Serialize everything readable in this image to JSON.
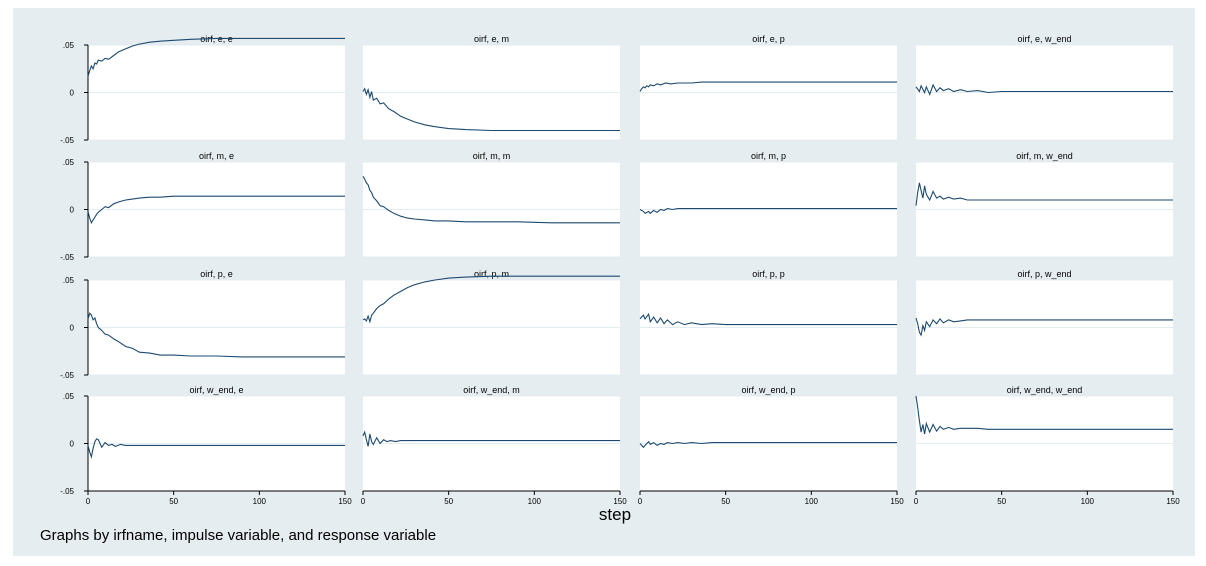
{
  "chart_data": {
    "type": "line",
    "layout": "small-multiples 4x4, shared axes",
    "xlabel": "step",
    "note": "Graphs by irfname, impulse variable, and response variable",
    "xlim": [
      0,
      150
    ],
    "ylim": [
      -0.05,
      0.05
    ],
    "x_ticks": [
      0,
      50,
      100,
      150
    ],
    "y_ticks": [
      0.05,
      0,
      -0.05
    ],
    "x_tick_labels": [
      "0",
      "50",
      "100",
      "150"
    ],
    "y_tick_labels": [
      ".05",
      "0",
      "-.05"
    ],
    "grid": true,
    "colors": {
      "background": "#e6edf1",
      "panel": "#ffffff",
      "strip": "#e6edf1",
      "line": "#1c4a70",
      "grid": "#e3ecf1"
    },
    "panels": [
      {
        "title": "oirf, e, e",
        "x": [
          0,
          1,
          2,
          3,
          4,
          5,
          6,
          8,
          10,
          12,
          15,
          18,
          22,
          26,
          30,
          36,
          42,
          50,
          60,
          75,
          90,
          110,
          130,
          150
        ],
        "y": [
          0.017,
          0.023,
          0.028,
          0.025,
          0.031,
          0.03,
          0.034,
          0.033,
          0.036,
          0.035,
          0.039,
          0.043,
          0.046,
          0.049,
          0.051,
          0.053,
          0.054,
          0.055,
          0.056,
          0.057,
          0.057,
          0.057,
          0.057,
          0.057
        ]
      },
      {
        "title": "oirf, e, m",
        "x": [
          0,
          1,
          2,
          3,
          4,
          5,
          6,
          8,
          10,
          12,
          15,
          18,
          22,
          26,
          30,
          36,
          42,
          50,
          60,
          75,
          90,
          110,
          130,
          150
        ],
        "y": [
          0.001,
          0.004,
          -0.002,
          0.003,
          -0.005,
          0.001,
          -0.008,
          -0.006,
          -0.012,
          -0.011,
          -0.017,
          -0.02,
          -0.025,
          -0.028,
          -0.031,
          -0.034,
          -0.036,
          -0.038,
          -0.039,
          -0.04,
          -0.04,
          -0.04,
          -0.04,
          -0.04
        ]
      },
      {
        "title": "oirf, e, p",
        "x": [
          0,
          1,
          2,
          3,
          4,
          5,
          6,
          8,
          10,
          12,
          15,
          18,
          22,
          26,
          30,
          36,
          42,
          50,
          60,
          75,
          90,
          110,
          130,
          150
        ],
        "y": [
          0.001,
          0.004,
          0.006,
          0.005,
          0.007,
          0.006,
          0.008,
          0.007,
          0.009,
          0.008,
          0.01,
          0.009,
          0.01,
          0.01,
          0.01,
          0.011,
          0.011,
          0.011,
          0.011,
          0.011,
          0.011,
          0.011,
          0.011,
          0.011
        ]
      },
      {
        "title": "oirf, e, w_end",
        "x": [
          0,
          2,
          3,
          5,
          6,
          8,
          10,
          12,
          14,
          16,
          19,
          22,
          26,
          30,
          36,
          42,
          50,
          60,
          75,
          90,
          110,
          130,
          150
        ],
        "y": [
          0.006,
          0.001,
          0.007,
          0.0,
          0.006,
          -0.002,
          0.008,
          0.001,
          0.005,
          0.002,
          0.004,
          0.001,
          0.003,
          0.001,
          0.002,
          0.0,
          0.001,
          0.001,
          0.001,
          0.001,
          0.001,
          0.001,
          0.001
        ]
      },
      {
        "title": "oirf, m, e",
        "x": [
          0,
          1,
          2,
          3,
          4,
          5,
          6,
          8,
          10,
          12,
          15,
          18,
          22,
          26,
          30,
          36,
          42,
          50,
          60,
          75,
          90,
          110,
          130,
          150
        ],
        "y": [
          -0.002,
          -0.009,
          -0.014,
          -0.011,
          -0.008,
          -0.005,
          -0.003,
          0.0,
          0.003,
          0.002,
          0.006,
          0.008,
          0.01,
          0.011,
          0.012,
          0.013,
          0.013,
          0.014,
          0.014,
          0.014,
          0.014,
          0.014,
          0.014,
          0.014
        ]
      },
      {
        "title": "oirf, m, m",
        "x": [
          0,
          1,
          2,
          3,
          4,
          5,
          6,
          8,
          10,
          12,
          15,
          18,
          22,
          26,
          30,
          36,
          42,
          50,
          60,
          75,
          90,
          110,
          130,
          150
        ],
        "y": [
          0.035,
          0.032,
          0.028,
          0.026,
          0.02,
          0.018,
          0.013,
          0.009,
          0.004,
          0.003,
          -0.001,
          -0.004,
          -0.007,
          -0.009,
          -0.01,
          -0.011,
          -0.012,
          -0.012,
          -0.013,
          -0.013,
          -0.013,
          -0.014,
          -0.014,
          -0.014
        ]
      },
      {
        "title": "oirf, m, p",
        "x": [
          0,
          2,
          3,
          5,
          6,
          8,
          10,
          12,
          14,
          16,
          19,
          22,
          26,
          30,
          36,
          42,
          50,
          60,
          75,
          90,
          110,
          130,
          150
        ],
        "y": [
          0.0,
          -0.002,
          -0.004,
          -0.002,
          -0.004,
          -0.001,
          -0.003,
          0.0,
          -0.001,
          0.001,
          0.0,
          0.001,
          0.001,
          0.001,
          0.001,
          0.001,
          0.001,
          0.001,
          0.001,
          0.001,
          0.001,
          0.001,
          0.001
        ]
      },
      {
        "title": "oirf, m, w_end",
        "x": [
          0,
          1,
          2,
          3,
          4,
          5,
          6,
          8,
          10,
          12,
          14,
          16,
          19,
          22,
          26,
          30,
          36,
          42,
          50,
          60,
          75,
          90,
          110,
          130,
          150
        ],
        "y": [
          0.004,
          0.018,
          0.028,
          0.02,
          0.012,
          0.025,
          0.016,
          0.01,
          0.019,
          0.012,
          0.014,
          0.011,
          0.013,
          0.011,
          0.012,
          0.01,
          0.01,
          0.01,
          0.01,
          0.01,
          0.01,
          0.01,
          0.01,
          0.01,
          0.01
        ]
      },
      {
        "title": "oirf, p, e",
        "x": [
          0,
          1,
          2,
          3,
          4,
          5,
          6,
          8,
          10,
          12,
          15,
          18,
          22,
          26,
          30,
          36,
          42,
          50,
          60,
          75,
          90,
          110,
          130,
          150
        ],
        "y": [
          0.009,
          0.015,
          0.013,
          0.008,
          0.01,
          0.004,
          0.0,
          -0.003,
          -0.007,
          -0.008,
          -0.012,
          -0.015,
          -0.02,
          -0.022,
          -0.026,
          -0.027,
          -0.029,
          -0.029,
          -0.03,
          -0.03,
          -0.031,
          -0.031,
          -0.031,
          -0.031
        ]
      },
      {
        "title": "oirf, p, m",
        "x": [
          0,
          1,
          2,
          3,
          4,
          5,
          6,
          8,
          10,
          12,
          15,
          18,
          22,
          26,
          30,
          36,
          42,
          50,
          60,
          75,
          90,
          110,
          130,
          150
        ],
        "y": [
          0.008,
          0.009,
          0.007,
          0.012,
          0.006,
          0.013,
          0.015,
          0.02,
          0.023,
          0.025,
          0.03,
          0.034,
          0.038,
          0.042,
          0.045,
          0.048,
          0.05,
          0.052,
          0.053,
          0.054,
          0.054,
          0.054,
          0.054,
          0.054
        ]
      },
      {
        "title": "oirf, p, p",
        "x": [
          0,
          2,
          3,
          5,
          6,
          8,
          10,
          12,
          14,
          16,
          19,
          22,
          26,
          30,
          36,
          42,
          50,
          60,
          75,
          90,
          110,
          130,
          150
        ],
        "y": [
          0.009,
          0.013,
          0.009,
          0.014,
          0.006,
          0.011,
          0.005,
          0.01,
          0.004,
          0.008,
          0.003,
          0.006,
          0.003,
          0.005,
          0.003,
          0.004,
          0.003,
          0.003,
          0.003,
          0.003,
          0.003,
          0.003,
          0.003
        ]
      },
      {
        "title": "oirf, p, w_end",
        "x": [
          0,
          1,
          2,
          3,
          4,
          5,
          6,
          8,
          10,
          12,
          14,
          16,
          19,
          22,
          26,
          30,
          36,
          42,
          50,
          60,
          75,
          90,
          110,
          130,
          150
        ],
        "y": [
          0.01,
          0.004,
          -0.005,
          -0.008,
          0.002,
          -0.003,
          0.006,
          0.001,
          0.008,
          0.004,
          0.009,
          0.005,
          0.008,
          0.006,
          0.007,
          0.008,
          0.008,
          0.008,
          0.008,
          0.008,
          0.008,
          0.008,
          0.008,
          0.008,
          0.008
        ]
      },
      {
        "title": "oirf, w_end, e",
        "x": [
          0,
          1,
          2,
          3,
          4,
          5,
          6,
          8,
          10,
          12,
          14,
          16,
          19,
          22,
          26,
          30,
          36,
          42,
          50,
          60,
          75,
          90,
          110,
          130,
          150
        ],
        "y": [
          -0.002,
          -0.009,
          -0.014,
          -0.005,
          0.002,
          0.005,
          0.004,
          -0.004,
          0.001,
          -0.002,
          -0.001,
          -0.003,
          -0.001,
          -0.002,
          -0.002,
          -0.002,
          -0.002,
          -0.002,
          -0.002,
          -0.002,
          -0.002,
          -0.002,
          -0.002,
          -0.002,
          -0.002
        ]
      },
      {
        "title": "oirf, w_end, m",
        "x": [
          0,
          1,
          2,
          3,
          4,
          5,
          6,
          8,
          10,
          12,
          14,
          16,
          19,
          22,
          26,
          30,
          36,
          42,
          50,
          60,
          75,
          90,
          110,
          130,
          150
        ],
        "y": [
          0.008,
          0.012,
          0.004,
          -0.003,
          0.01,
          0.002,
          -0.001,
          0.006,
          0.0,
          0.004,
          0.002,
          0.003,
          0.002,
          0.003,
          0.003,
          0.003,
          0.003,
          0.003,
          0.003,
          0.003,
          0.003,
          0.003,
          0.003,
          0.003,
          0.003
        ]
      },
      {
        "title": "oirf, w_end, p",
        "x": [
          0,
          2,
          3,
          5,
          6,
          8,
          10,
          12,
          14,
          16,
          19,
          22,
          26,
          30,
          36,
          42,
          50,
          60,
          75,
          90,
          110,
          130,
          150
        ],
        "y": [
          0.0,
          -0.004,
          -0.002,
          0.002,
          -0.001,
          0.001,
          -0.002,
          0.0,
          -0.001,
          0.001,
          0.0,
          0.001,
          0.0,
          0.001,
          0.0,
          0.001,
          0.001,
          0.001,
          0.001,
          0.001,
          0.001,
          0.001,
          0.001
        ]
      },
      {
        "title": "oirf, w_end, w_end",
        "x": [
          0,
          1,
          2,
          3,
          4,
          5,
          6,
          8,
          10,
          12,
          14,
          16,
          19,
          22,
          26,
          30,
          36,
          42,
          50,
          60,
          75,
          90,
          110,
          130,
          150
        ],
        "y": [
          0.05,
          0.038,
          0.024,
          0.012,
          0.02,
          0.01,
          0.021,
          0.012,
          0.02,
          0.013,
          0.018,
          0.015,
          0.017,
          0.015,
          0.016,
          0.016,
          0.016,
          0.015,
          0.015,
          0.015,
          0.015,
          0.015,
          0.015,
          0.015,
          0.015
        ]
      }
    ]
  }
}
